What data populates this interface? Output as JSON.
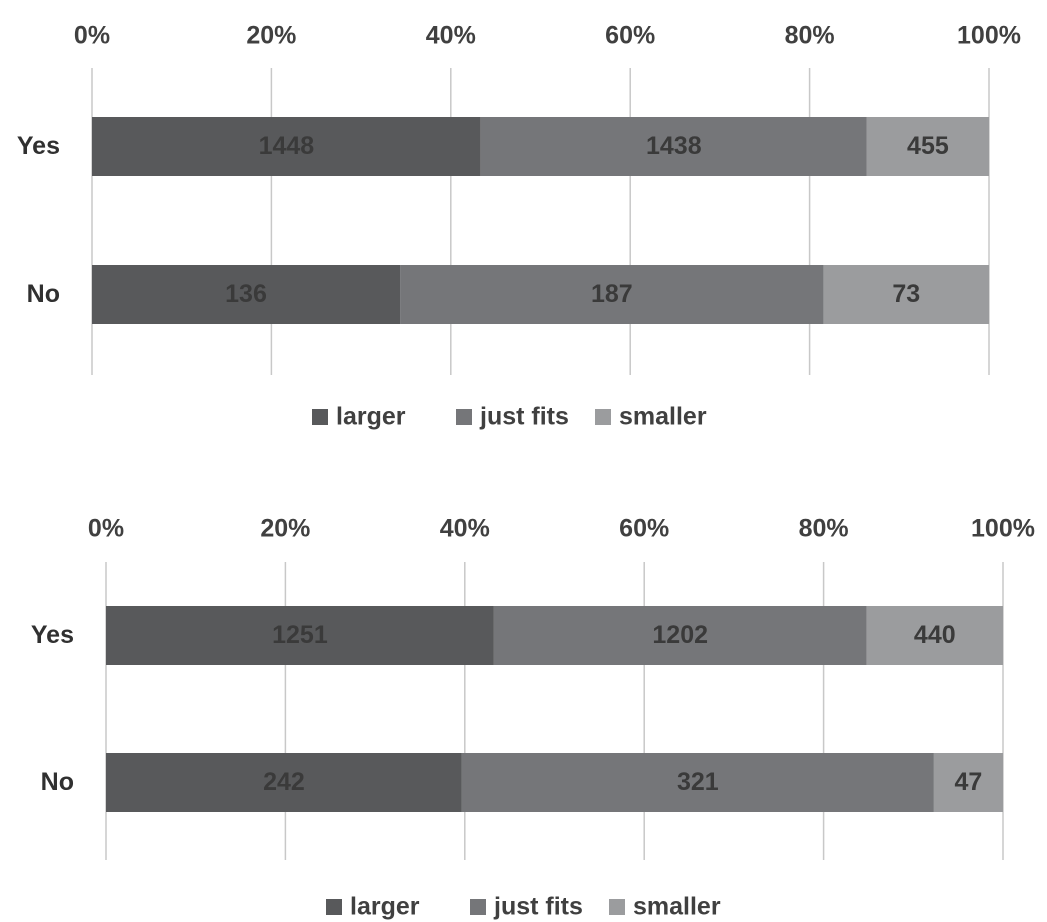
{
  "chart_data": [
    {
      "type": "bar",
      "orientation": "horizontal",
      "stacked": "percent",
      "categories": [
        "Yes",
        "No"
      ],
      "series": [
        {
          "name": "larger",
          "values": [
            1448,
            136
          ]
        },
        {
          "name": "just fits",
          "values": [
            1438,
            187
          ]
        },
        {
          "name": "smaller",
          "values": [
            455,
            73
          ]
        }
      ],
      "xlim": [
        0,
        100
      ],
      "xticks": [
        "0%",
        "20%",
        "40%",
        "60%",
        "80%",
        "100%"
      ],
      "grid": true,
      "legend": "bottom",
      "colors": [
        "#58595b",
        "#757679",
        "#9b9c9e"
      ]
    },
    {
      "type": "bar",
      "orientation": "horizontal",
      "stacked": "percent",
      "categories": [
        "Yes",
        "No"
      ],
      "series": [
        {
          "name": "larger",
          "values": [
            1251,
            242
          ]
        },
        {
          "name": "just fits",
          "values": [
            1202,
            321
          ]
        },
        {
          "name": "smaller",
          "values": [
            440,
            47
          ]
        }
      ],
      "xlim": [
        0,
        100
      ],
      "xticks": [
        "0%",
        "20%",
        "40%",
        "60%",
        "80%",
        "100%"
      ],
      "grid": true,
      "legend": "bottom",
      "colors": [
        "#58595b",
        "#757679",
        "#9b9c9e"
      ]
    }
  ]
}
